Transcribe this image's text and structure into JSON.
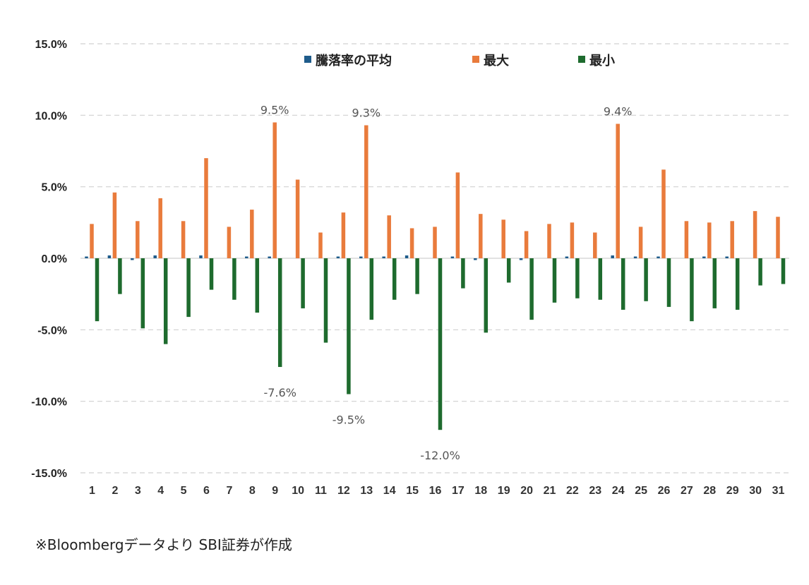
{
  "chart_data": {
    "type": "bar",
    "categories": [
      "1",
      "2",
      "3",
      "4",
      "5",
      "6",
      "7",
      "8",
      "9",
      "10",
      "11",
      "12",
      "13",
      "14",
      "15",
      "16",
      "17",
      "18",
      "19",
      "20",
      "21",
      "22",
      "23",
      "24",
      "25",
      "26",
      "27",
      "28",
      "29",
      "30",
      "31"
    ],
    "series": [
      {
        "name": "騰落率の平均",
        "color": "#1f5c8b",
        "values": [
          0.1,
          0.2,
          -0.1,
          0.2,
          0.0,
          0.2,
          0.0,
          0.1,
          0.1,
          0.0,
          0.0,
          0.1,
          0.1,
          0.1,
          0.2,
          0.0,
          0.1,
          -0.1,
          0.0,
          -0.1,
          0.0,
          0.1,
          0.0,
          0.2,
          0.1,
          0.1,
          0.0,
          0.1,
          0.1,
          0.0,
          0.0
        ]
      },
      {
        "name": "最大",
        "color": "#e97b3c",
        "values": [
          2.4,
          4.6,
          2.6,
          4.2,
          2.6,
          7.0,
          2.2,
          3.4,
          9.5,
          5.5,
          1.8,
          3.2,
          9.3,
          3.0,
          2.1,
          2.2,
          6.0,
          3.1,
          2.7,
          1.9,
          2.4,
          2.5,
          1.8,
          9.4,
          2.2,
          6.2,
          2.6,
          2.5,
          2.6,
          3.3,
          2.9
        ]
      },
      {
        "name": "最小",
        "color": "#1e6b2e",
        "values": [
          -4.4,
          -2.5,
          -4.9,
          -6.0,
          -4.1,
          -2.2,
          -2.9,
          -3.8,
          -7.6,
          -3.5,
          -5.9,
          -9.5,
          -4.3,
          -2.9,
          -2.5,
          -12.0,
          -2.1,
          -5.2,
          -1.7,
          -4.3,
          -3.1,
          -2.8,
          -2.9,
          -3.6,
          -3.0,
          -3.4,
          -4.4,
          -3.5,
          -3.6,
          -1.9,
          -1.8
        ]
      }
    ],
    "annotations": [
      {
        "category": "9",
        "series": "最大",
        "text": "9.5%"
      },
      {
        "category": "13",
        "series": "最大",
        "text": "9.3%"
      },
      {
        "category": "24",
        "series": "最大",
        "text": "9.4%"
      },
      {
        "category": "9",
        "series": "最小",
        "text": "-7.6%"
      },
      {
        "category": "12",
        "series": "最小",
        "text": "-9.5%"
      },
      {
        "category": "16",
        "series": "最小",
        "text": "-12.0%"
      }
    ],
    "ylim": [
      -15.0,
      15.0
    ],
    "yticks": [
      15.0,
      10.0,
      5.0,
      0.0,
      -5.0,
      -10.0,
      -15.0
    ],
    "ytick_labels": [
      "15.0%",
      "10.0%",
      "5.0%",
      "0.0%",
      "-5.0%",
      "-10.0%",
      "-15.0%"
    ],
    "grid": true,
    "legend_position": "top-center",
    "title": "",
    "xlabel": "",
    "ylabel": ""
  },
  "source_note": "※Bloombergデータより SBI証券が作成"
}
